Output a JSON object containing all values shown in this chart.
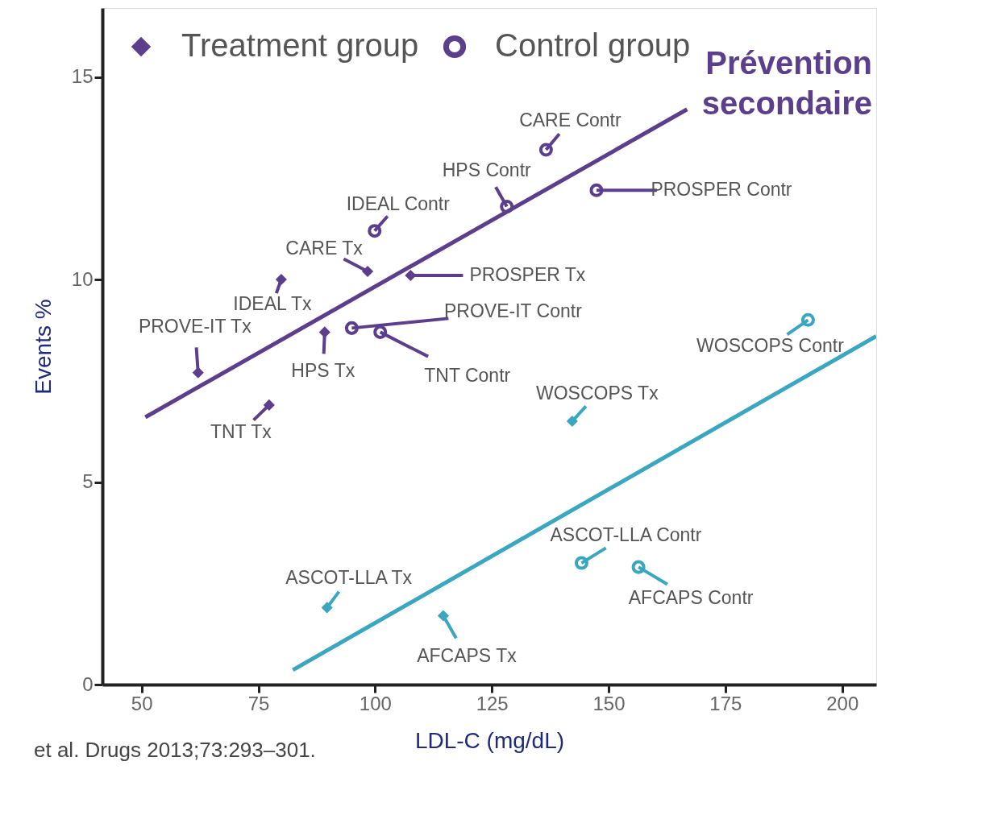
{
  "chart_data": {
    "type": "scatter",
    "xlabel": "LDL-C (mg/dL)",
    "ylabel": "Events %",
    "annotations": [
      "Prévention secondaire",
      "et al. Drugs 2013;73:293–301."
    ],
    "xlim": [
      41.6,
      207.3
    ],
    "ylim": [
      0,
      16.7
    ],
    "xticks": [
      50,
      75,
      100,
      125,
      150,
      175,
      200
    ],
    "yticks": [
      0,
      5,
      10,
      15
    ],
    "grid": false,
    "legend": "top left",
    "series": [
      {
        "name": "Treatment group",
        "type": "scatter",
        "marker": "diamond",
        "color": "#5b3f8c",
        "x": [
          62.1,
          79.9,
          77.3,
          89.2,
          98.4,
          107.6,
          142.2,
          89.7,
          114.6
        ],
        "values": [
          7.7,
          10.0,
          6.9,
          8.7,
          10.2,
          10.1,
          6.5,
          1.9,
          1.7
        ],
        "colors": [
          "#5b3f8c",
          "#5b3f8c",
          "#5b3f8c",
          "#5b3f8c",
          "#5b3f8c",
          "#5b3f8c",
          "#3aa6c0",
          "#3aa6c0",
          "#3aa6c0"
        ],
        "value_labels": [
          "PROVE-IT Tx",
          "IDEAL Tx",
          "TNT Tx",
          "HPS Tx",
          "CARE Tx",
          "PROSPER Tx",
          "WOSCOPS Tx",
          "ASCOT-LLA Tx",
          "AFCAPS Tx"
        ]
      },
      {
        "name": "Control group",
        "type": "scatter",
        "marker": "circle",
        "color": "#5b3f8c",
        "x": [
          136.6,
          128.2,
          99.9,
          147.4,
          95.0,
          101.1,
          192.7,
          144.2,
          156.4
        ],
        "values": [
          13.2,
          11.8,
          11.2,
          12.2,
          8.8,
          8.7,
          9.0,
          3.0,
          2.9
        ],
        "colors": [
          "#5b3f8c",
          "#5b3f8c",
          "#5b3f8c",
          "#5b3f8c",
          "#5b3f8c",
          "#5b3f8c",
          "#3aa6c0",
          "#3aa6c0",
          "#3aa6c0"
        ],
        "value_labels": [
          "CARE Contr",
          "HPS Contr",
          "IDEAL Contr",
          "PROSPER Contr",
          "PROVE-IT Contr",
          "TNT Contr",
          "WOSCOPS Contr",
          "ASCOT-LLA Contr",
          "AFCAPS Contr"
        ]
      },
      {
        "type": "line",
        "color": "#5b3f8c",
        "x": [
          50.8,
          166.8
        ],
        "values": [
          6.6,
          14.2
        ]
      },
      {
        "type": "line",
        "color": "#3aa6c0",
        "x": [
          82.4,
          207.3
        ],
        "values": [
          0.36,
          8.6
        ]
      }
    ]
  }
}
